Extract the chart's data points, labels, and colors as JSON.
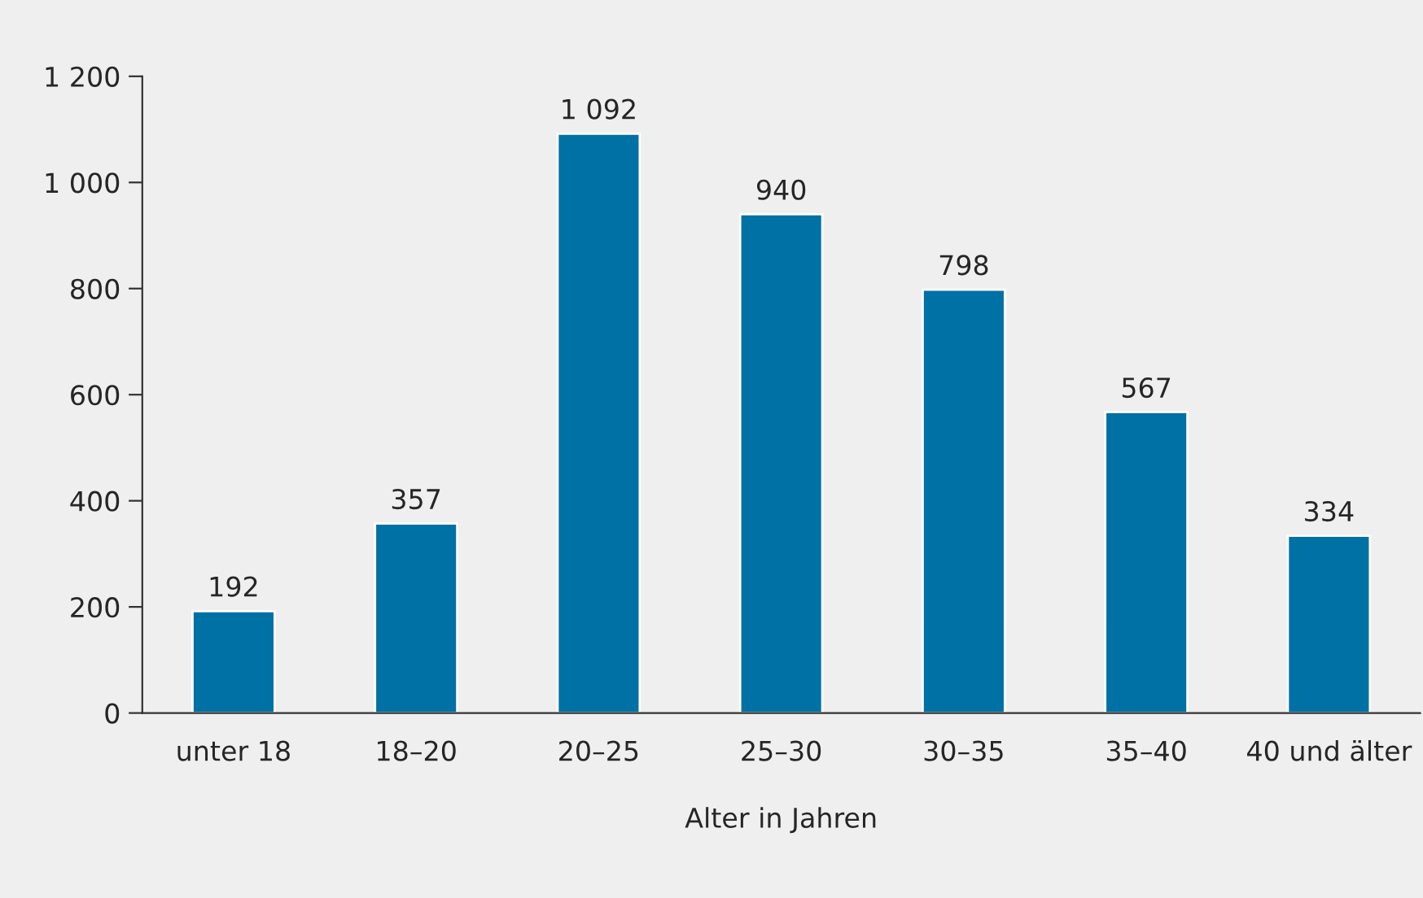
{
  "chart_data": {
    "type": "bar",
    "xlabel": "Alter in Jahren",
    "categories": [
      "unter 18",
      "18–20",
      "20–25",
      "25–30",
      "30–35",
      "35–40",
      "40 und älter"
    ],
    "values": [
      192,
      357,
      1092,
      940,
      798,
      567,
      334
    ],
    "value_labels": [
      "192",
      "357",
      "1 092",
      "940",
      "798",
      "567",
      "334"
    ],
    "color": "#0071a4",
    "ylim": [
      0,
      1200
    ],
    "yticks": [
      0,
      200,
      400,
      600,
      800,
      {
        "value": 1000,
        "label": "1 000"
      },
      {
        "value": 1200,
        "label": "1 200"
      }
    ],
    "grid": false,
    "legend": false
  }
}
